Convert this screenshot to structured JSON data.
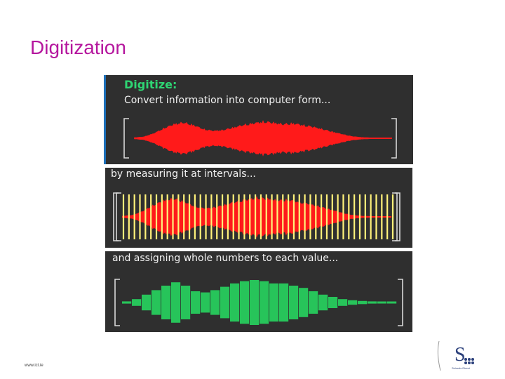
{
  "slide": {
    "title": "Digitization",
    "title_color": "#b5179e"
  },
  "panels": {
    "panel1": {
      "heading": "Digitize:",
      "heading_color": "#2ed573",
      "caption": "Convert information into computer form..."
    },
    "panel2": {
      "caption": "by measuring it at intervals..."
    },
    "panel3": {
      "caption": "and assigning whole numbers to each value..."
    }
  },
  "colors": {
    "panel_bg": "#2f2f2f",
    "wave_red": "#ff1a1a",
    "sample_yellow": "#fff27a",
    "bar_green": "#27c45a",
    "bracket": "#d9d9d9"
  },
  "waveform": {
    "envelope": [
      0.05,
      0.1,
      0.3,
      0.6,
      0.85,
      0.95,
      0.8,
      0.55,
      0.45,
      0.5,
      0.65,
      0.8,
      0.9,
      1.0,
      0.95,
      0.85,
      0.9,
      0.8,
      0.7,
      0.55,
      0.4,
      0.25,
      0.12,
      0.06,
      0.04,
      0.03,
      0.02
    ],
    "sample_count": 50,
    "quantized_levels": [
      0.05,
      0.15,
      0.35,
      0.55,
      0.75,
      0.9,
      0.75,
      0.5,
      0.45,
      0.55,
      0.7,
      0.85,
      0.95,
      1.0,
      0.95,
      0.85,
      0.85,
      0.75,
      0.65,
      0.5,
      0.35,
      0.25,
      0.15,
      0.1,
      0.07,
      0.05,
      0.03,
      0.02
    ]
  },
  "footer": {
    "url": "www.ict.ie"
  },
  "logo": {
    "letter": "S",
    "tagline": "Schools Direct"
  }
}
